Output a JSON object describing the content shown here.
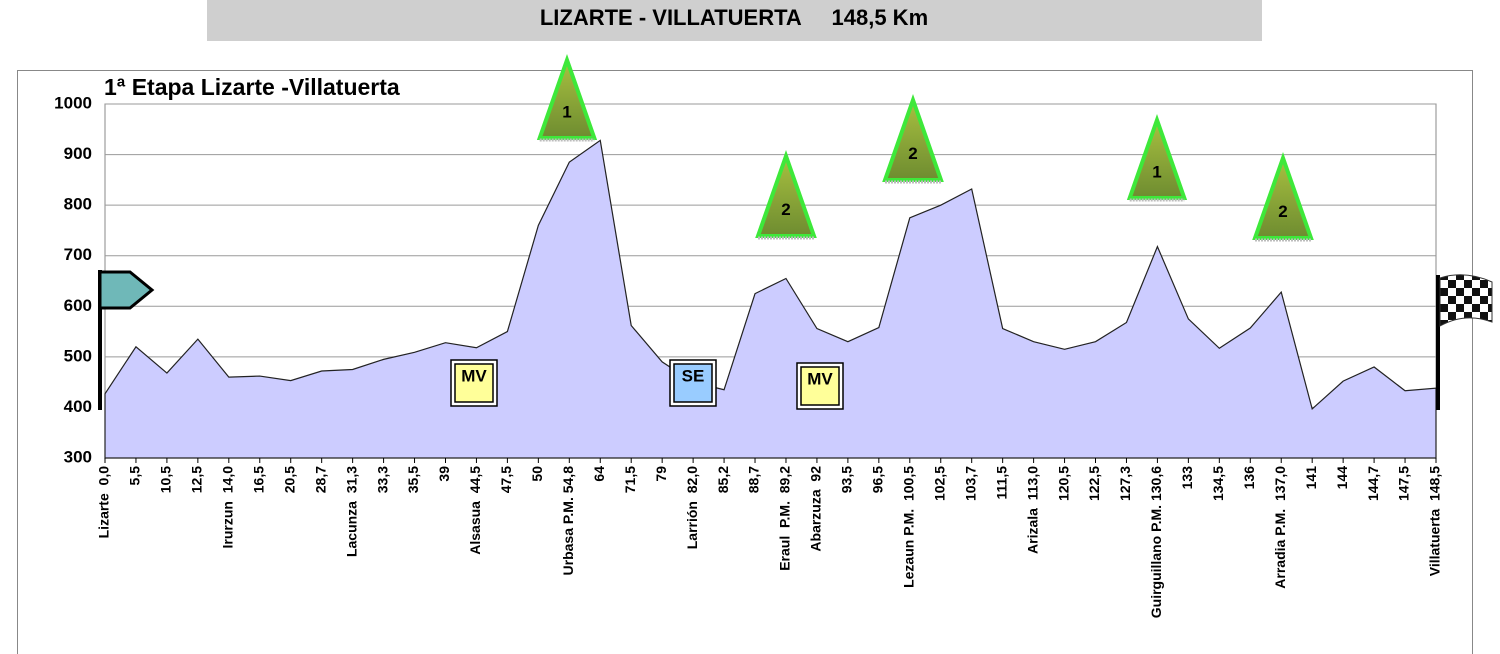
{
  "header": {
    "title": "LIZARTE - VILLATUERTA     148,5 Km"
  },
  "chart_data": {
    "type": "area",
    "title": "1ª Etapa Lizarte -Villatuerta",
    "color": "#ccccff",
    "line_color": "#222222",
    "grid": true,
    "categories": [
      "Lizarte  0,0",
      "5,5",
      "10,5",
      "12,5",
      "Irurzun  14,0",
      "16,5",
      "20,5",
      "28,7",
      "Lacunza  31,3",
      "33,3",
      "35,5",
      "39",
      "Alsasua  44,5",
      "47,5",
      "50",
      "Urbasa P.M. 54,8",
      "64",
      "71,5",
      "79",
      "Larrión  82,0",
      "85,2",
      "88,7",
      "Eraul  P.M.  89,2",
      "Abarzuza  92",
      "93,5",
      "96,5",
      "Lezaun P.M.  100,5",
      "102,5",
      "103,7",
      "111,5",
      "Arizala  113,0",
      "120,5",
      "122,5",
      "127,3",
      "Guirguillano P.M. 130,6",
      "133",
      "134,5",
      "136",
      "Arradia P.M.  137,0",
      "141",
      "144",
      "144,7",
      "147,5",
      "Villatuerta  148,5"
    ],
    "values": [
      427,
      520,
      468,
      535,
      460,
      462,
      453,
      472,
      475,
      495,
      509,
      528,
      518,
      550,
      760,
      885,
      928,
      562,
      490,
      450,
      435,
      625,
      655,
      556,
      530,
      558,
      775,
      800,
      832,
      556,
      530,
      515,
      530,
      568,
      718,
      575,
      517,
      557,
      628,
      397,
      452,
      480,
      433,
      438
    ],
    "ylim": [
      300,
      1000
    ],
    "yticks": [
      300,
      400,
      500,
      600,
      700,
      800,
      900,
      1000
    ],
    "climbs": [
      "1",
      "2",
      "2",
      "1",
      "2"
    ],
    "badges": [
      "MV",
      "SE",
      "MV"
    ]
  }
}
